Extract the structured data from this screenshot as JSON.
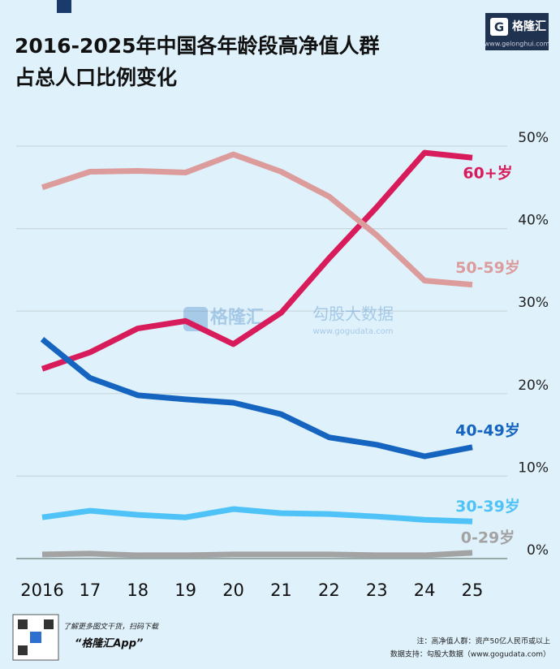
{
  "chart_data": {
    "type": "line",
    "title": [
      "2016-2025年中国各年龄段高净值人群",
      "占总人口比例变化"
    ],
    "logo": {
      "name": "格隆汇",
      "url": "www.gelonghui.com"
    },
    "watermark": {
      "brand": "格隆汇",
      "source": "勾股大数据",
      "url": "www.gogudata.com"
    },
    "categories": [
      "2016",
      "17",
      "18",
      "19",
      "20",
      "21",
      "22",
      "23",
      "24",
      "25"
    ],
    "series": [
      {
        "name": "60+岁",
        "color": "#d81b5a",
        "values": [
          23.0,
          25.0,
          27.9,
          28.8,
          26.0,
          29.8,
          36.4,
          42.6,
          49.2,
          48.6
        ]
      },
      {
        "name": "50-59岁",
        "color": "#dd9c9c",
        "values": [
          45.0,
          46.9,
          47.0,
          46.8,
          49.0,
          46.9,
          43.9,
          39.2,
          33.7,
          33.2
        ]
      },
      {
        "name": "40-49岁",
        "color": "#1565c0",
        "values": [
          26.6,
          21.9,
          19.8,
          19.3,
          18.9,
          17.5,
          14.7,
          13.8,
          12.4,
          13.5
        ]
      },
      {
        "name": "30-39岁",
        "color": "#4fc3f7",
        "values": [
          5.0,
          5.8,
          5.3,
          5.0,
          6.0,
          5.5,
          5.4,
          5.1,
          4.7,
          4.5
        ]
      },
      {
        "name": "0-29岁",
        "color": "#a3a3a3",
        "values": [
          0.5,
          0.6,
          0.4,
          0.4,
          0.5,
          0.5,
          0.5,
          0.4,
          0.4,
          0.7
        ]
      }
    ],
    "ylim": [
      0,
      50
    ],
    "yticks": [
      {
        "value": 0,
        "label": "0%"
      },
      {
        "value": 10,
        "label": "10%"
      },
      {
        "value": 20,
        "label": "20%"
      },
      {
        "value": 30,
        "label": "30%"
      },
      {
        "value": 40,
        "label": "40%"
      },
      {
        "value": 50,
        "label": "50%"
      }
    ],
    "grid": true,
    "footer": {
      "promo": "了解更多图文干货，扫码下载",
      "app": "“格隆汇App”",
      "note": "注：高净值人群：资产50亿人民币或以上",
      "source": "数据支持：勾股大数据（www.gogudata.com）"
    }
  }
}
